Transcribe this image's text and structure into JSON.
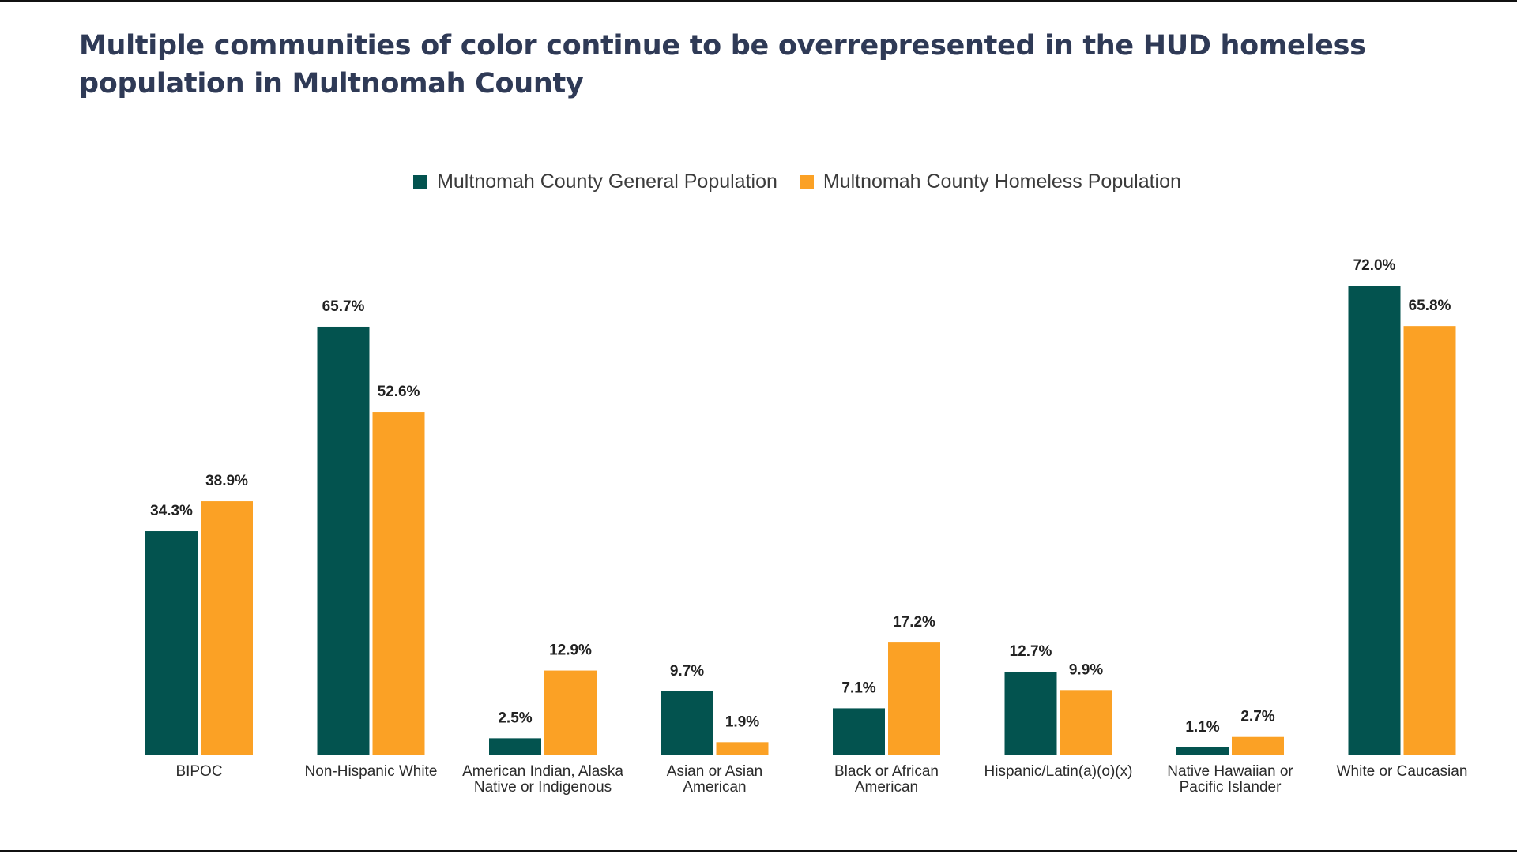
{
  "title": "Multiple communities of color continue to be overrepresented in the HUD homeless population in Multnomah County",
  "colors": {
    "general": "#03534f",
    "homeless": "#fba125",
    "title": "#2f3a56"
  },
  "legend": [
    {
      "label": "Multnomah County General Population",
      "color": "#03534f"
    },
    {
      "label": "Multnomah County Homeless Population",
      "color": "#fba125"
    }
  ],
  "chart_data": {
    "type": "bar",
    "categories": [
      [
        "BIPOC"
      ],
      [
        "Non-Hispanic White"
      ],
      [
        "American Indian, Alaska",
        "Native or Indigenous"
      ],
      [
        "Asian or Asian",
        "American"
      ],
      [
        "Black or African",
        "American"
      ],
      [
        "Hispanic/Latin(a)(o)(x)"
      ],
      [
        "Native Hawaiian or",
        "Pacific Islander"
      ],
      [
        "White or Caucasian"
      ]
    ],
    "series": [
      {
        "name": "Multnomah County General Population",
        "values": [
          34.3,
          65.7,
          2.5,
          9.7,
          7.1,
          12.7,
          1.1,
          72.0
        ],
        "labels": [
          "34.3%",
          "65.7%",
          "2.5%",
          "9.7%",
          "7.1%",
          "12.7%",
          "1.1%",
          "72.0%"
        ]
      },
      {
        "name": "Multnomah County Homeless Population",
        "values": [
          38.9,
          52.6,
          12.9,
          1.9,
          17.2,
          9.9,
          2.7,
          65.8
        ],
        "labels": [
          "38.9%",
          "52.6%",
          "12.9%",
          "1.9%",
          "17.2%",
          "9.9%",
          "2.7%",
          "65.8%"
        ]
      }
    ],
    "xlabel": "",
    "ylabel": "",
    "ylim": [
      0,
      72
    ],
    "grid": false,
    "legend_position": "top-center"
  }
}
